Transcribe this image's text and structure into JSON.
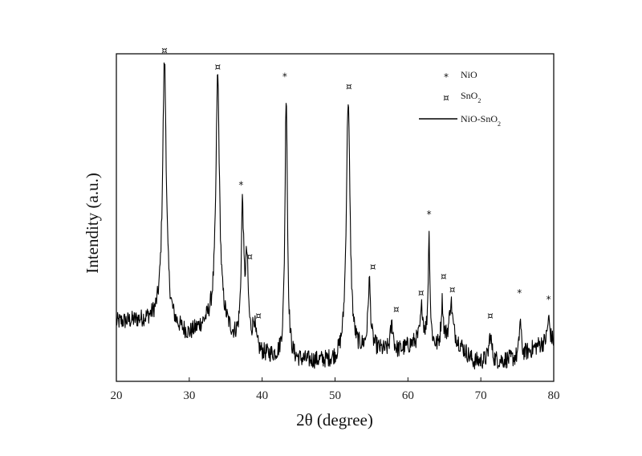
{
  "chart_data": {
    "type": "line",
    "title": "",
    "xlabel": "2θ (degree)",
    "ylabel": "Intendity (a.u.)",
    "xlim": [
      20,
      80
    ],
    "ylim": [
      0,
      100
    ],
    "x_ticks": [
      20,
      30,
      40,
      50,
      60,
      70,
      80
    ],
    "grid": false,
    "legend_position": "top-right",
    "legend": [
      {
        "symbol": "*",
        "label": "NiO"
      },
      {
        "symbol": "¤",
        "label": "SnO2"
      },
      {
        "symbol": "line",
        "label": "NiO-SnO2"
      }
    ],
    "series": [
      {
        "name": "NiO-SnO2",
        "color": "#000000",
        "baseline": [
          [
            20,
            18
          ],
          [
            26,
            19
          ],
          [
            30,
            14
          ],
          [
            34,
            20
          ],
          [
            36,
            13
          ],
          [
            40,
            8
          ],
          [
            44,
            6
          ],
          [
            50,
            6
          ],
          [
            55,
            10
          ],
          [
            58,
            8
          ],
          [
            62,
            13
          ],
          [
            64,
            10
          ],
          [
            66,
            14
          ],
          [
            69,
            6
          ],
          [
            72,
            6
          ],
          [
            75,
            7
          ],
          [
            78,
            11
          ],
          [
            80,
            12
          ]
        ],
        "peaks": [
          {
            "x": 26.6,
            "y": 98,
            "width": 0.45
          },
          {
            "x": 33.9,
            "y": 93,
            "width": 0.42
          },
          {
            "x": 37.3,
            "y": 52,
            "width": 0.3
          },
          {
            "x": 37.9,
            "y": 35,
            "width": 0.35
          },
          {
            "x": 38.9,
            "y": 17,
            "width": 0.35
          },
          {
            "x": 43.3,
            "y": 88,
            "width": 0.3
          },
          {
            "x": 51.8,
            "y": 86,
            "width": 0.45
          },
          {
            "x": 54.7,
            "y": 30,
            "width": 0.3
          },
          {
            "x": 57.8,
            "y": 17,
            "width": 0.4
          },
          {
            "x": 61.9,
            "y": 22,
            "width": 0.3
          },
          {
            "x": 62.9,
            "y": 44,
            "width": 0.22
          },
          {
            "x": 64.7,
            "y": 24,
            "width": 0.25
          },
          {
            "x": 65.9,
            "y": 24,
            "width": 0.35
          },
          {
            "x": 71.3,
            "y": 14,
            "width": 0.35
          },
          {
            "x": 75.4,
            "y": 19,
            "width": 0.22
          },
          {
            "x": 79.3,
            "y": 19,
            "width": 0.3
          }
        ]
      }
    ],
    "annotations": [
      {
        "symbol": "¤",
        "x": 26.6,
        "y": 100
      },
      {
        "symbol": "¤",
        "x": 33.9,
        "y": 95
      },
      {
        "symbol": "*",
        "x": 37.1,
        "y": 59
      },
      {
        "symbol": "¤",
        "x": 38.3,
        "y": 37
      },
      {
        "symbol": "¤",
        "x": 39.5,
        "y": 19
      },
      {
        "symbol": "*",
        "x": 43.1,
        "y": 92
      },
      {
        "symbol": "¤",
        "x": 51.9,
        "y": 89
      },
      {
        "symbol": "¤",
        "x": 55.2,
        "y": 34
      },
      {
        "symbol": "¤",
        "x": 58.4,
        "y": 21
      },
      {
        "symbol": "¤",
        "x": 61.8,
        "y": 26
      },
      {
        "symbol": "*",
        "x": 62.9,
        "y": 50
      },
      {
        "symbol": "¤",
        "x": 64.9,
        "y": 31
      },
      {
        "symbol": "¤",
        "x": 66.1,
        "y": 27
      },
      {
        "symbol": "¤",
        "x": 71.3,
        "y": 19
      },
      {
        "symbol": "*",
        "x": 75.3,
        "y": 26
      },
      {
        "symbol": "*",
        "x": 79.3,
        "y": 24
      }
    ]
  }
}
